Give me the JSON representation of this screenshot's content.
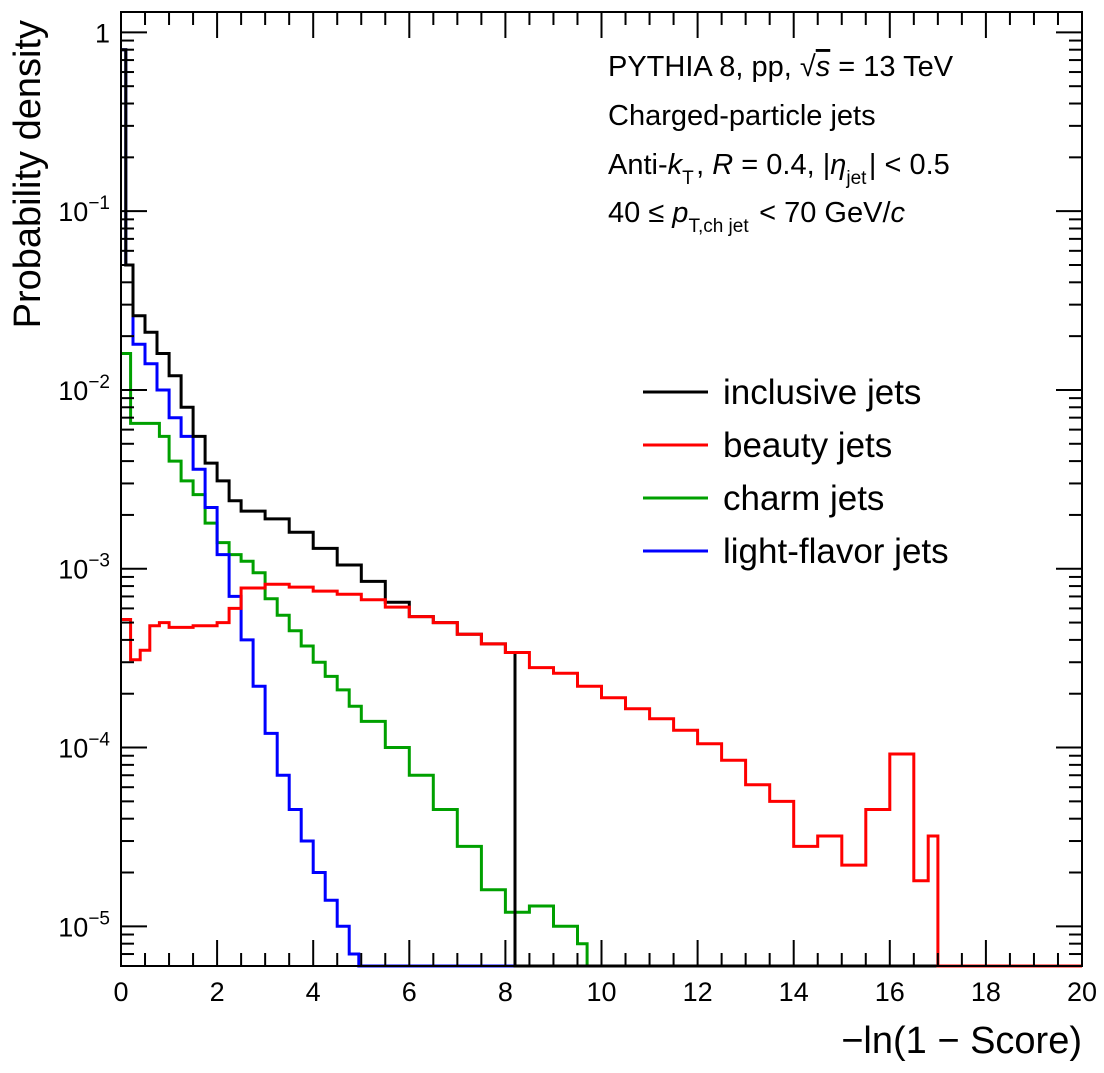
{
  "chart_data": {
    "type": "line",
    "style": "step-histogram",
    "xlabel": "−ln(1 − Score)",
    "ylabel": "Probability density",
    "xlim": [
      0,
      20
    ],
    "ylim": [
      6e-06,
      1.3
    ],
    "yscale": "log",
    "grid": false,
    "x_ticks": [
      0,
      2,
      4,
      6,
      8,
      10,
      12,
      14,
      16,
      18,
      20
    ],
    "y_ticks": [
      {
        "value": 1,
        "label": "1"
      },
      {
        "value": 0.1,
        "label": "10^-1"
      },
      {
        "value": 0.01,
        "label": "10^-2"
      },
      {
        "value": 0.001,
        "label": "10^-3"
      },
      {
        "value": 0.0001,
        "label": "10^-4"
      },
      {
        "value": 1e-05,
        "label": "10^-5"
      }
    ],
    "annotations": [
      "PYTHIA 8, pp, √s = 13 TeV",
      "Charged-particle jets",
      "Anti-k_T, R = 0.4, |η_jet| < 0.5",
      "40 ≤ p_T,ch jet < 70 GeV/c"
    ],
    "legend_position": "right",
    "series": [
      {
        "name": "inclusive jets",
        "color": "#000000",
        "points": [
          [
            0.0,
            0.8
          ],
          [
            0.1,
            0.05
          ],
          [
            0.25,
            0.026
          ],
          [
            0.5,
            0.021
          ],
          [
            0.75,
            0.016
          ],
          [
            1.0,
            0.012
          ],
          [
            1.25,
            0.008
          ],
          [
            1.5,
            0.0055
          ],
          [
            1.75,
            0.0039
          ],
          [
            2.0,
            0.0031
          ],
          [
            2.25,
            0.0024
          ],
          [
            2.5,
            0.0021
          ],
          [
            3.0,
            0.0019
          ],
          [
            3.5,
            0.0016
          ],
          [
            4.0,
            0.0013
          ],
          [
            4.5,
            0.00105
          ],
          [
            5.0,
            0.00085
          ],
          [
            5.5,
            0.00065
          ],
          [
            6.0,
            0.00054
          ],
          [
            6.5,
            0.0005
          ],
          [
            7.0,
            0.00043
          ],
          [
            7.5,
            0.00038
          ],
          [
            8.0,
            0.00034
          ]
        ]
      },
      {
        "name": "beauty jets",
        "color": "#ff0000",
        "points": [
          [
            0.0,
            0.00052
          ],
          [
            0.2,
            0.00031
          ],
          [
            0.4,
            0.00035
          ],
          [
            0.6,
            0.00048
          ],
          [
            0.8,
            0.0005
          ],
          [
            1.0,
            0.00047
          ],
          [
            1.5,
            0.00048
          ],
          [
            2.0,
            0.0005
          ],
          [
            2.25,
            0.0006
          ],
          [
            2.5,
            0.00078
          ],
          [
            3.0,
            0.00082
          ],
          [
            3.5,
            0.00079
          ],
          [
            4.0,
            0.00075
          ],
          [
            4.5,
            0.00072
          ],
          [
            5.0,
            0.00067
          ],
          [
            5.5,
            0.00061
          ],
          [
            6.0,
            0.00054
          ],
          [
            6.5,
            0.0005
          ],
          [
            7.0,
            0.00043
          ],
          [
            7.5,
            0.00038
          ],
          [
            8.0,
            0.00034
          ],
          [
            8.5,
            0.00028
          ],
          [
            9.0,
            0.00026
          ],
          [
            9.5,
            0.00022
          ],
          [
            10.0,
            0.00019
          ],
          [
            10.5,
            0.000165
          ],
          [
            11.0,
            0.000145
          ],
          [
            11.5,
            0.000125
          ],
          [
            12.0,
            0.000105
          ],
          [
            12.5,
            8.5e-05
          ],
          [
            13.0,
            6.2e-05
          ],
          [
            13.5,
            5e-05
          ],
          [
            14.0,
            2.8e-05
          ],
          [
            14.5,
            3.2e-05
          ],
          [
            15.0,
            2.2e-05
          ],
          [
            15.5,
            4.5e-05
          ],
          [
            16.0,
            9.2e-05
          ],
          [
            16.5,
            1.8e-05
          ],
          [
            16.8,
            3.2e-05
          ]
        ]
      },
      {
        "name": "charm jets",
        "color": "#00a000",
        "points": [
          [
            0.0,
            0.016
          ],
          [
            0.2,
            0.0065
          ],
          [
            0.5,
            0.0065
          ],
          [
            0.8,
            0.0055
          ],
          [
            1.0,
            0.004
          ],
          [
            1.25,
            0.0031
          ],
          [
            1.5,
            0.0026
          ],
          [
            1.75,
            0.0018
          ],
          [
            2.0,
            0.0014
          ],
          [
            2.25,
            0.0012
          ],
          [
            2.5,
            0.0011
          ],
          [
            2.75,
            0.00095
          ],
          [
            3.0,
            0.00068
          ],
          [
            3.25,
            0.00055
          ],
          [
            3.5,
            0.00045
          ],
          [
            3.75,
            0.00037
          ],
          [
            4.0,
            0.0003
          ],
          [
            4.25,
            0.00025
          ],
          [
            4.5,
            0.00021
          ],
          [
            4.75,
            0.00017
          ],
          [
            5.0,
            0.00014
          ],
          [
            5.5,
            0.0001
          ],
          [
            6.0,
            7e-05
          ],
          [
            6.5,
            4.5e-05
          ],
          [
            7.0,
            2.8e-05
          ],
          [
            7.5,
            1.6e-05
          ],
          [
            8.0,
            1.2e-05
          ],
          [
            8.5,
            1.3e-05
          ],
          [
            9.0,
            1e-05
          ],
          [
            9.5,
            8e-06
          ]
        ]
      },
      {
        "name": "light-flavor jets",
        "color": "#0000ff",
        "points": [
          [
            0.0,
            0.8
          ],
          [
            0.1,
            0.05
          ],
          [
            0.25,
            0.018
          ],
          [
            0.5,
            0.014
          ],
          [
            0.75,
            0.01
          ],
          [
            1.0,
            0.007
          ],
          [
            1.25,
            0.0055
          ],
          [
            1.5,
            0.0036
          ],
          [
            1.75,
            0.0022
          ],
          [
            2.0,
            0.0012
          ],
          [
            2.25,
            0.0007
          ],
          [
            2.5,
            0.0004
          ],
          [
            2.75,
            0.00022
          ],
          [
            3.0,
            0.00012
          ],
          [
            3.25,
            7e-05
          ],
          [
            3.5,
            4.5e-05
          ],
          [
            3.75,
            3e-05
          ],
          [
            4.0,
            2e-05
          ],
          [
            4.25,
            1.4e-05
          ],
          [
            4.5,
            1e-05
          ],
          [
            4.75,
            7e-06
          ]
        ]
      }
    ]
  }
}
